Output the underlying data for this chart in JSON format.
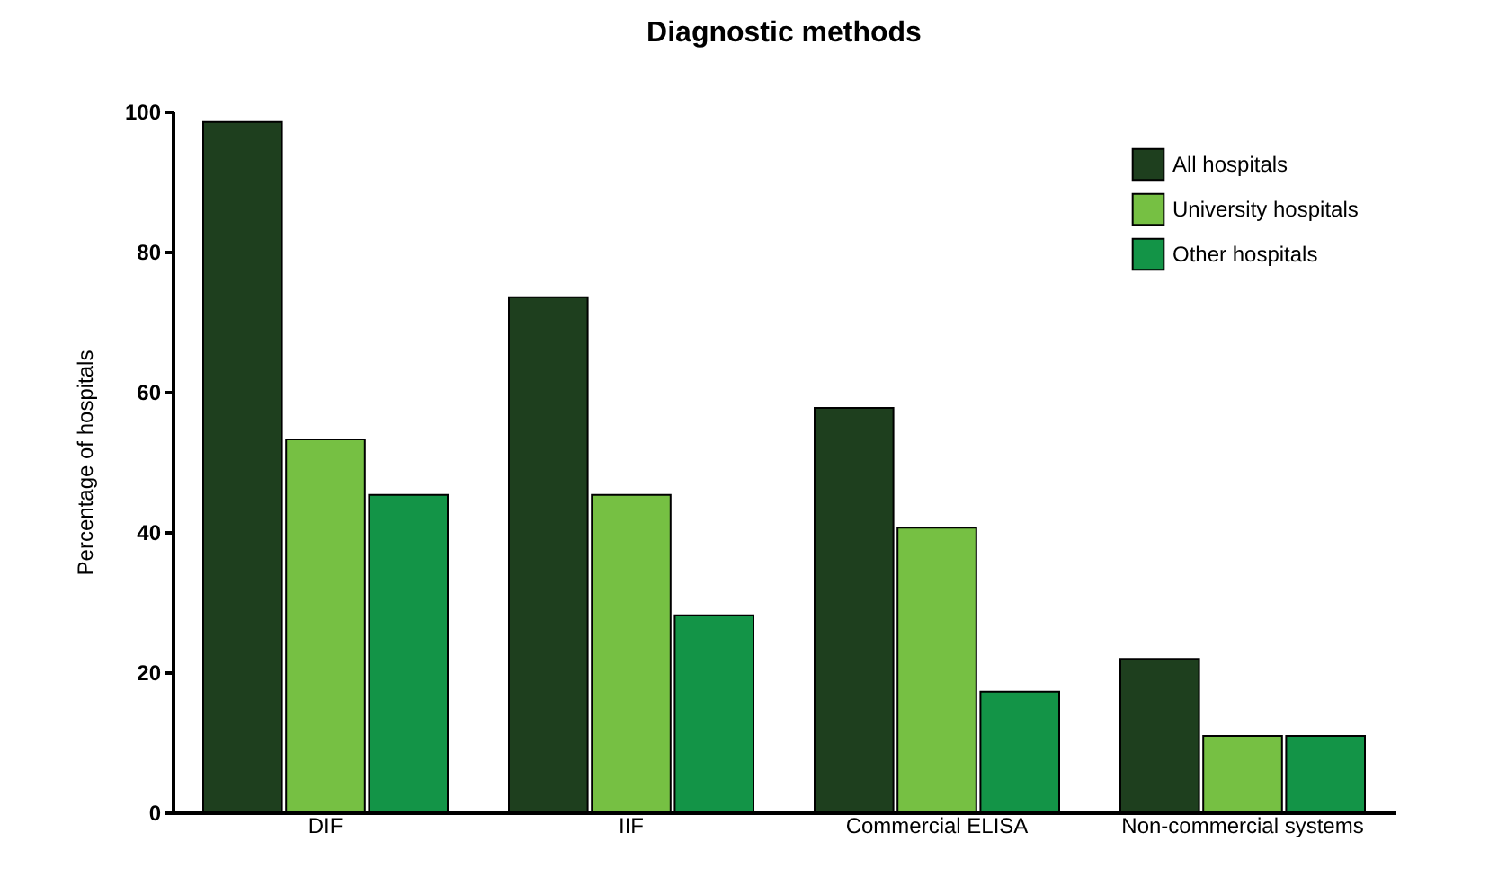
{
  "chart_data": {
    "type": "bar",
    "title": "Diagnostic methods",
    "ylabel": "Percentage of hospitals",
    "categories": [
      "DIF",
      "IIF",
      "Commercial ELISA",
      "Non-commercial systems"
    ],
    "series": [
      {
        "name": "All hospitals",
        "color": "#1e3f1e",
        "values": [
          98.5,
          73.5,
          57.7,
          21.9
        ]
      },
      {
        "name": "University hospitals",
        "color": "#76c043",
        "values": [
          53.2,
          45.3,
          40.6,
          10.9
        ]
      },
      {
        "name": "Other hospitals",
        "color": "#139447",
        "values": [
          45.3,
          28.1,
          17.2,
          10.9
        ]
      }
    ],
    "ylim": [
      0,
      100
    ],
    "yticks": [
      0,
      20,
      40,
      60,
      80,
      100
    ],
    "grid": false,
    "legend": "top right"
  }
}
